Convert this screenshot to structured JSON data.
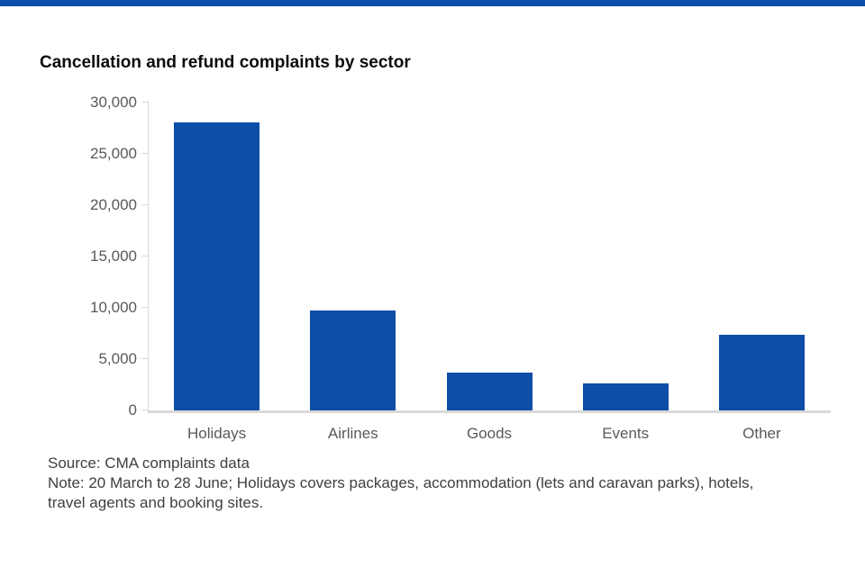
{
  "accent_bar": {
    "color": "#0d4ea8"
  },
  "chart_data": {
    "type": "bar",
    "title": "Cancellation and refund complaints by sector",
    "categories": [
      "Holidays",
      "Airlines",
      "Goods",
      "Events",
      "Other"
    ],
    "values": [
      28100,
      9700,
      3700,
      2600,
      7400
    ],
    "bar_color": "#0d4ea8",
    "xlabel": "",
    "ylabel": "",
    "ylim": [
      0,
      30000
    ],
    "ytick_labels": [
      "0",
      "5,000",
      "10,000",
      "15,000",
      "20,000",
      "25,000",
      "30,000"
    ],
    "grid": "off",
    "legend": "none"
  },
  "footnotes": {
    "source": "Source: CMA complaints data",
    "note_line1": "Note: 20 March to 28 June; Holidays covers packages, accommodation (lets and caravan parks), hotels,",
    "note_line2": "travel agents and booking sites."
  },
  "colors": {
    "axis_line": "#d9d9d9",
    "axis_text": "#595959",
    "note_text": "#3f3f3f",
    "title_text": "#0b0c0c"
  }
}
